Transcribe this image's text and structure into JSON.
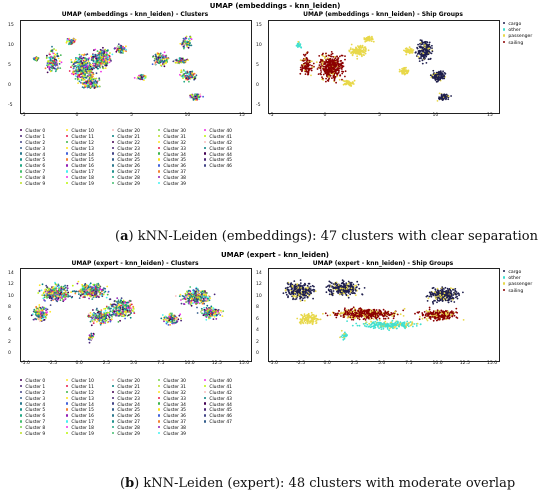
{
  "fig_a": {
    "suptitle": "UMAP (embeddings - knn_leiden)",
    "left_title": "UMAP (embeddings - knn_leiden) - Clusters",
    "right_title": "UMAP (embeddings - knn_leiden) - Ship Groups",
    "x_ticks": [
      "-5",
      "0",
      "5",
      "10",
      "15"
    ],
    "y_ticks": [
      "15",
      "10",
      "5",
      "0",
      "-5"
    ],
    "cluster_count": 47,
    "caption_label": "a",
    "caption_text": "kNN-Leiden (embeddings): 47 clusters with clear separation"
  },
  "fig_b": {
    "suptitle": "UMAP (expert - knn_leiden)",
    "left_title": "UMAP (expert - knn_leiden) - Clusters",
    "right_title": "UMAP (expert - knn_leiden) - Ship Groups",
    "x_ticks": [
      "-5.0",
      "-2.5",
      "0.0",
      "2.5",
      "5.0",
      "7.5",
      "10.0",
      "12.5",
      "15.0"
    ],
    "y_ticks": [
      "14",
      "12",
      "10",
      "8",
      "6",
      "4",
      "2",
      "0"
    ],
    "cluster_count": 48,
    "caption_label": "b",
    "caption_text": "kNN-Leiden (expert): 48 clusters with moderate overlap"
  },
  "ship_groups": [
    {
      "name": "cargo",
      "color": "#1f1f4d"
    },
    {
      "name": "other",
      "color": "#40e0d0"
    },
    {
      "name": "passenger",
      "color": "#e8d84a"
    },
    {
      "name": "sailing",
      "color": "#8b0000"
    }
  ],
  "cluster_prefix": "Cluster",
  "palette": [
    "#440154",
    "#482475",
    "#414487",
    "#355f8d",
    "#2a788e",
    "#21918c",
    "#22a884",
    "#44bf70",
    "#7ad151",
    "#bddf26",
    "#fde725",
    "#e6194b",
    "#3cb44b",
    "#ffe119",
    "#4363d8",
    "#f58231",
    "#911eb4",
    "#46f0f0",
    "#f032e6",
    "#bcf60c",
    "#fabebe",
    "#008080"
  ]
}
